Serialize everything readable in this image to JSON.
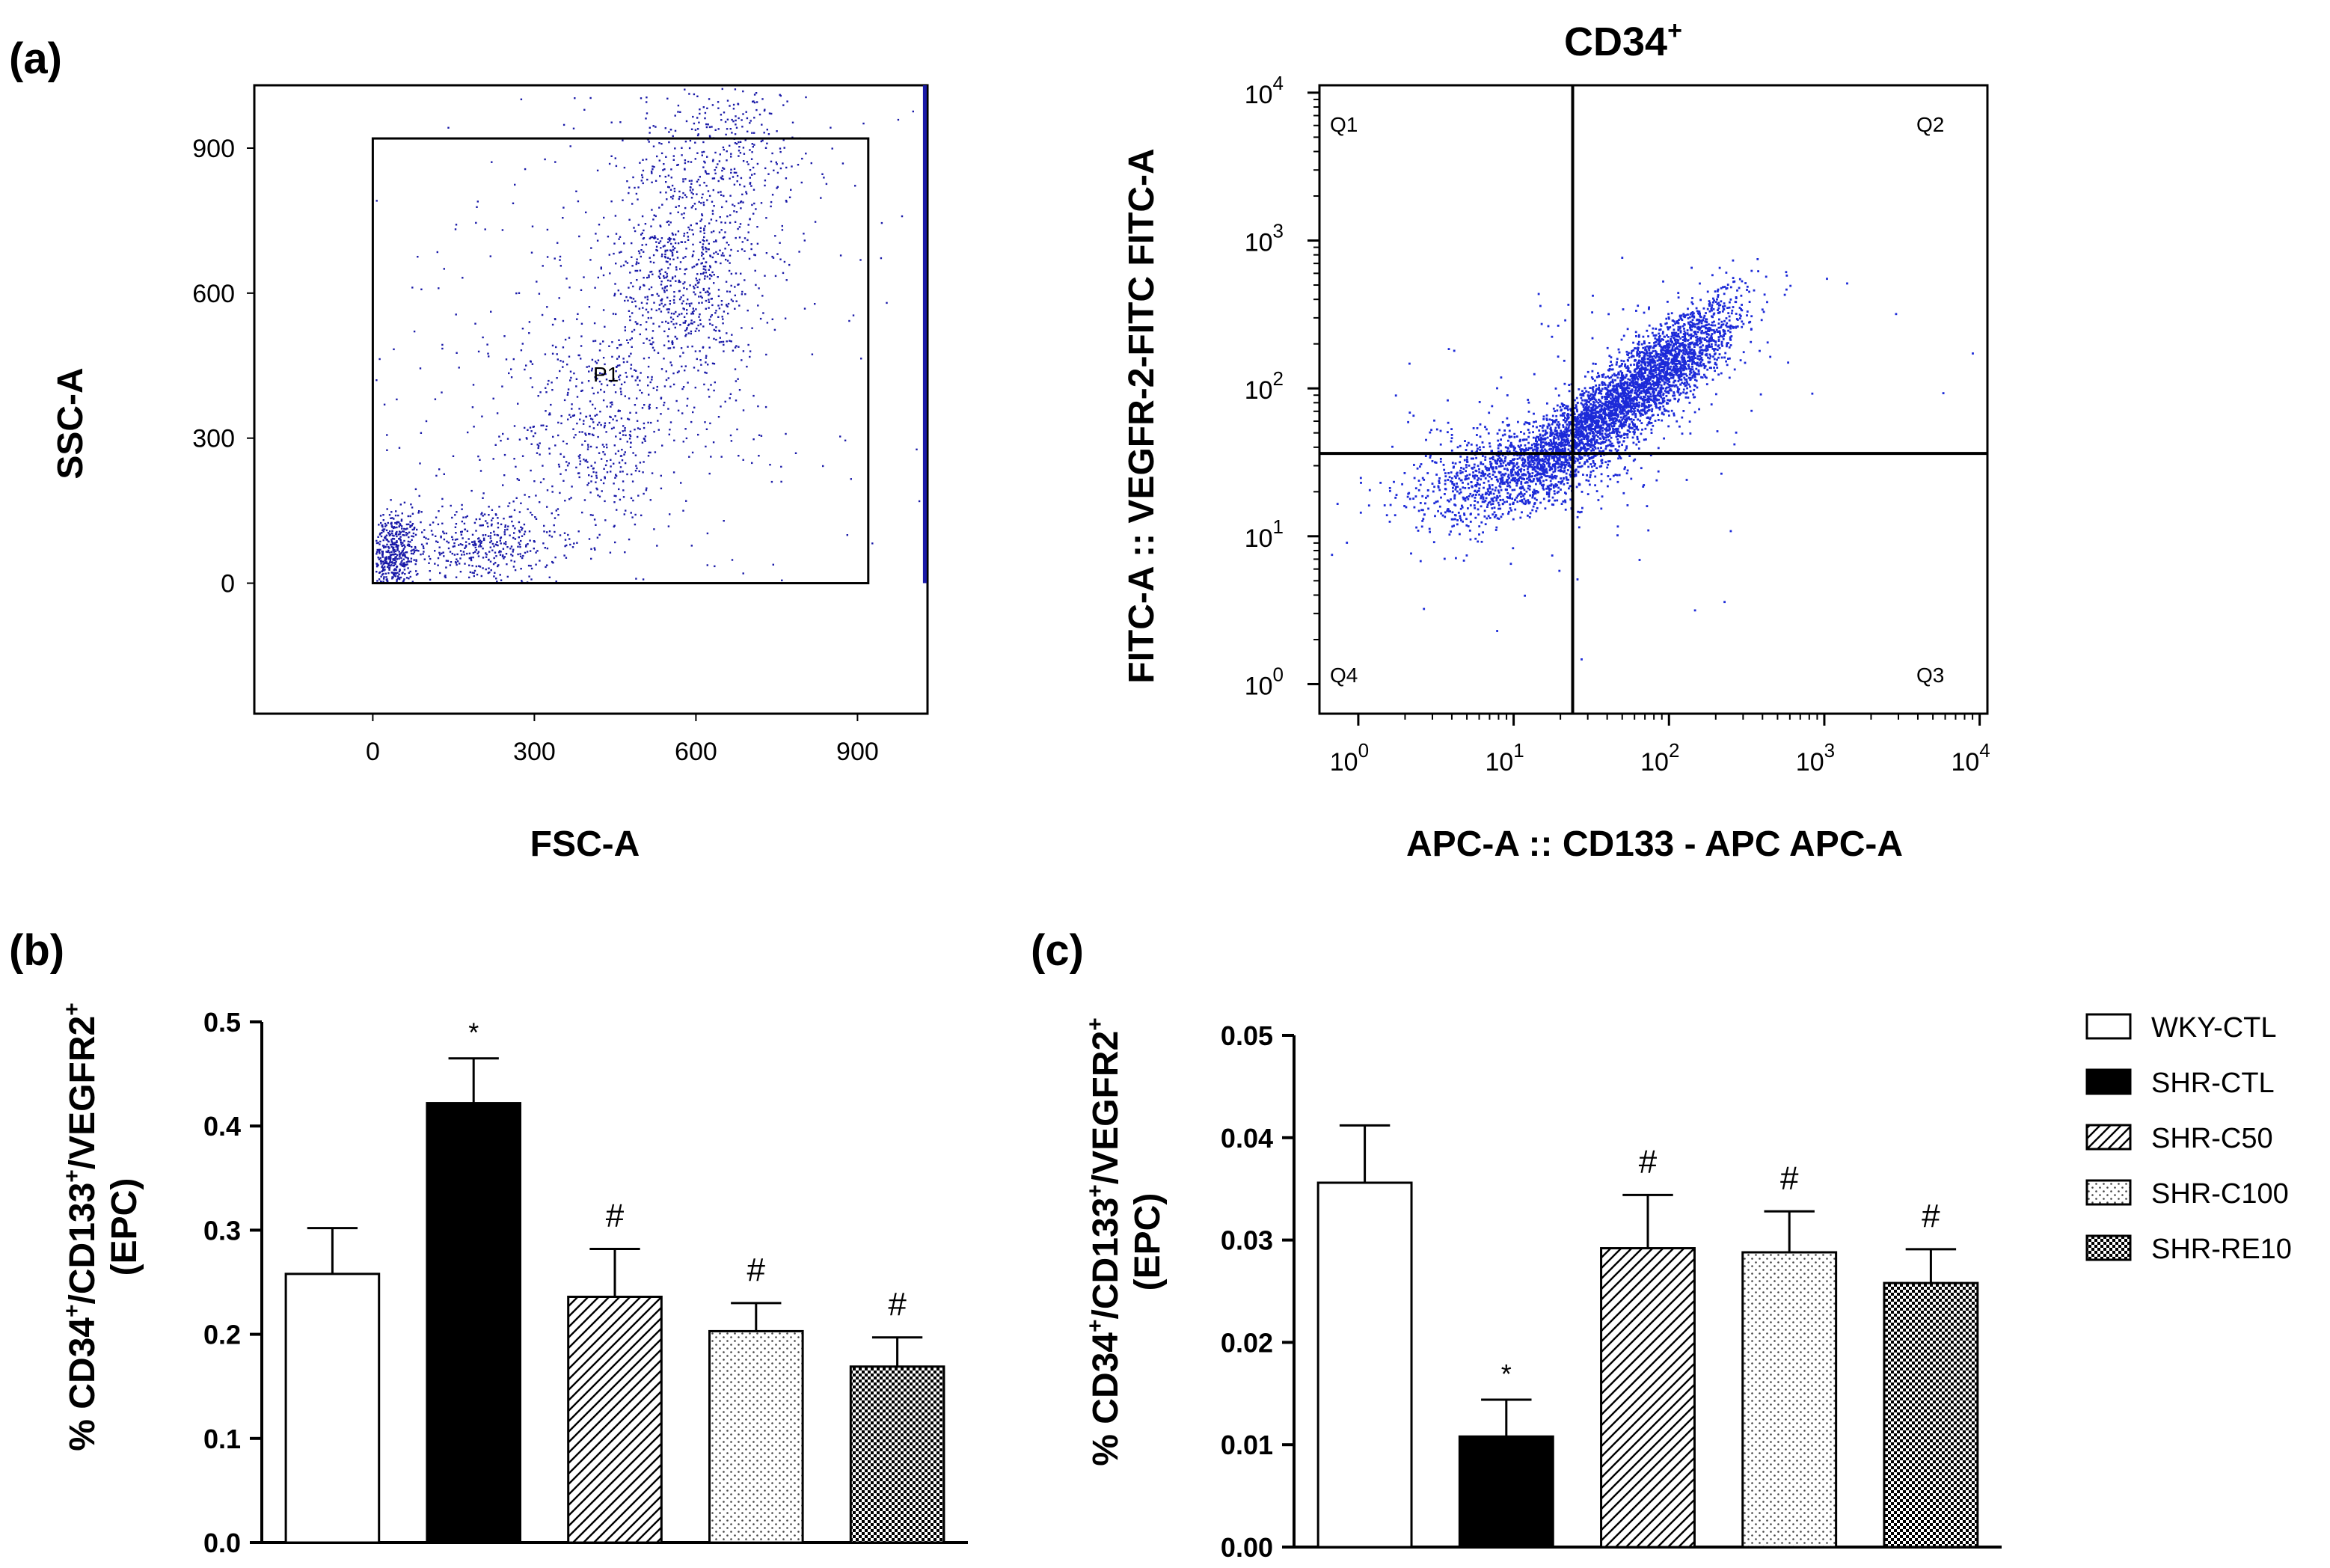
{
  "panel_labels": {
    "a": "(a)",
    "b": "(b)",
    "c": "(c)"
  },
  "chart_data": [
    {
      "type": "scatter",
      "panel": "a-left",
      "title": "",
      "xlabel": "FSC-A",
      "ylabel": "SSC-A",
      "xlim": [
        -220,
        1030
      ],
      "ylim": [
        -270,
        1030
      ],
      "xticks": [
        "0",
        "300",
        "600",
        "900"
      ],
      "yticks": [
        "0",
        "300",
        "600",
        "900"
      ],
      "gate": {
        "name": "P1",
        "x_range": [
          0,
          920
        ],
        "y_range": [
          0,
          920
        ]
      },
      "point_color": "#1a1aa8",
      "clusters": [
        {
          "cx": 35,
          "cy": 60,
          "sx": 25,
          "sy": 45,
          "n": 520
        },
        {
          "cx": 200,
          "cy": 80,
          "sx": 70,
          "sy": 40,
          "n": 380
        },
        {
          "cx": 420,
          "cy": 320,
          "sx": 70,
          "sy": 110,
          "n": 380
        },
        {
          "cx": 580,
          "cy": 640,
          "sx": 65,
          "sy": 130,
          "n": 750
        },
        {
          "cx": 660,
          "cy": 900,
          "sx": 90,
          "sy": 90,
          "n": 320
        },
        {
          "cx": 420,
          "cy": 400,
          "sx": 280,
          "sy": 300,
          "n": 520
        }
      ]
    },
    {
      "type": "scatter",
      "panel": "a-right",
      "title": "CD34",
      "title_sup": "+",
      "xlabel": "APC-A :: CD133 - APC APC-A",
      "ylabel": "FITC-A :: VEGFR-2-FITC FITC-A",
      "xscale": "log",
      "yscale": "log",
      "xlim_log10": [
        -0.25,
        4.05
      ],
      "ylim_log10": [
        -0.2,
        4.05
      ],
      "xticks": [
        {
          "base": "10",
          "exp": "0"
        },
        {
          "base": "10",
          "exp": "1"
        },
        {
          "base": "10",
          "exp": "2"
        },
        {
          "base": "10",
          "exp": "3"
        },
        {
          "base": "10",
          "exp": "4"
        }
      ],
      "yticks": [
        {
          "base": "10",
          "exp": "0"
        },
        {
          "base": "10",
          "exp": "1"
        },
        {
          "base": "10",
          "exp": "2"
        },
        {
          "base": "10",
          "exp": "3"
        },
        {
          "base": "10",
          "exp": "4"
        }
      ],
      "quadrant_divider_log10": {
        "x": 1.38,
        "y": 1.56
      },
      "quadrant_labels": [
        "Q1",
        "Q2",
        "Q3",
        "Q4"
      ],
      "point_color": "#1c2ad8",
      "clusters": [
        {
          "cx": 1.55,
          "cy": 1.8,
          "sx": 0.32,
          "sy": 0.25,
          "rho": 0.85,
          "n": 2600
        },
        {
          "cx": 2.05,
          "cy": 2.25,
          "sx": 0.22,
          "sy": 0.2,
          "rho": 0.7,
          "n": 1200
        },
        {
          "cx": 1.0,
          "cy": 1.45,
          "sx": 0.35,
          "sy": 0.18,
          "rho": 0.4,
          "n": 900
        },
        {
          "cx": 1.5,
          "cy": 1.7,
          "sx": 0.8,
          "sy": 0.55,
          "rho": 0.3,
          "n": 150
        }
      ]
    },
    {
      "type": "bar",
      "panel": "b",
      "ylabel_lines": [
        "% CD34",
        "+",
        "/CD133",
        "+",
        "/VEGFR2",
        "+",
        "(EPC)"
      ],
      "categories": [
        "WKY-CTL",
        "SHR-CTL",
        "SHR-C50",
        "SHR-C100",
        "SHR-RE10"
      ],
      "values": [
        0.258,
        0.422,
        0.236,
        0.203,
        0.169
      ],
      "errors": [
        0.044,
        0.043,
        0.046,
        0.027,
        0.028
      ],
      "annotations": [
        "",
        "*",
        "#",
        "#",
        "#"
      ],
      "ylim": [
        0,
        0.5
      ],
      "yticks": [
        "0.0",
        "0.1",
        "0.2",
        "0.3",
        "0.4",
        "0.5"
      ]
    },
    {
      "type": "bar",
      "panel": "c",
      "ylabel_lines": [
        "% CD34",
        "+",
        "/CD133",
        "+",
        "/VEGFR2",
        "+",
        "(EPC)"
      ],
      "categories": [
        "WKY-CTL",
        "SHR-CTL",
        "SHR-C50",
        "SHR-C100",
        "SHR-RE10"
      ],
      "values": [
        0.0356,
        0.0108,
        0.0292,
        0.0288,
        0.0258
      ],
      "errors": [
        0.0056,
        0.0036,
        0.0052,
        0.004,
        0.0033
      ],
      "annotations": [
        "",
        "*",
        "#",
        "#",
        "#"
      ],
      "ylim": [
        0,
        0.05
      ],
      "yticks": [
        "0.00",
        "0.01",
        "0.02",
        "0.03",
        "0.04",
        "0.05"
      ]
    }
  ],
  "legend": {
    "placement": "right of panel c",
    "items": [
      {
        "label": "WKY-CTL",
        "fill": "white"
      },
      {
        "label": "SHR-CTL",
        "fill": "black"
      },
      {
        "label": "SHR-C50",
        "fill": "diagonal"
      },
      {
        "label": "SHR-C100",
        "fill": "dots"
      },
      {
        "label": "SHR-RE10",
        "fill": "checker"
      }
    ]
  }
}
